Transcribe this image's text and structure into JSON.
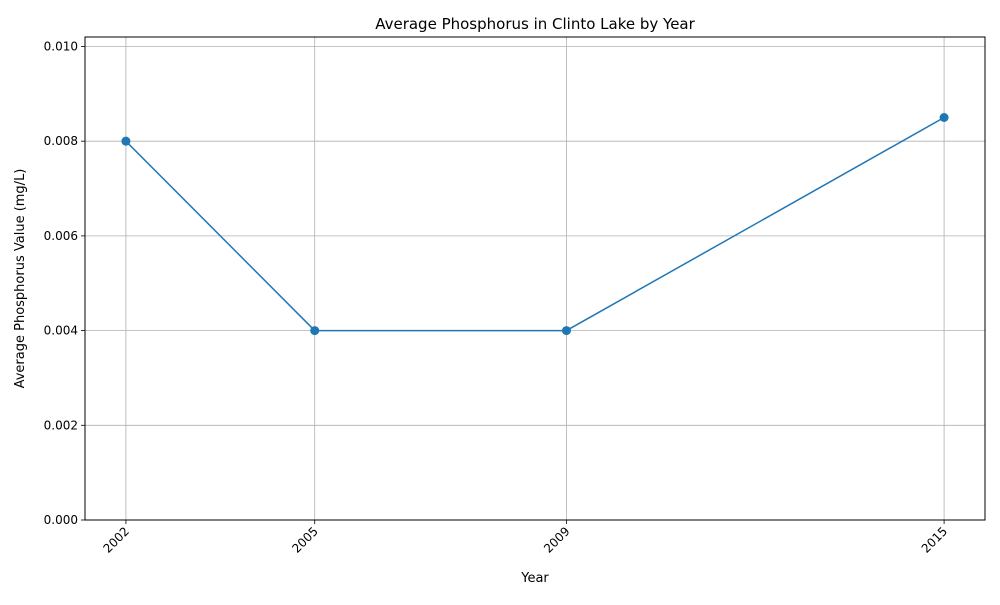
{
  "chart_data": {
    "type": "line",
    "title": "Average Phosphorus in Clinto Lake by Year",
    "xlabel": "Year",
    "ylabel": "Average Phosphorus Value (mg/L)",
    "x": [
      2002,
      2005,
      2009,
      2015
    ],
    "series": [
      {
        "values": [
          0.008,
          0.004,
          0.004,
          0.0085
        ]
      }
    ],
    "xticks": [
      "2002",
      "2005",
      "2009",
      "2015"
    ],
    "xlim": [
      2001.35,
      2015.65
    ],
    "yticks": [
      "0.000",
      "0.002",
      "0.004",
      "0.006",
      "0.008",
      "0.010"
    ],
    "ytick_values": [
      0,
      0.002,
      0.004,
      0.006,
      0.008,
      0.01
    ],
    "ylim": [
      0,
      0.0102
    ],
    "grid": true,
    "xtick_rotation": "45",
    "line_color": "#1f77b4",
    "marker": "circle"
  }
}
